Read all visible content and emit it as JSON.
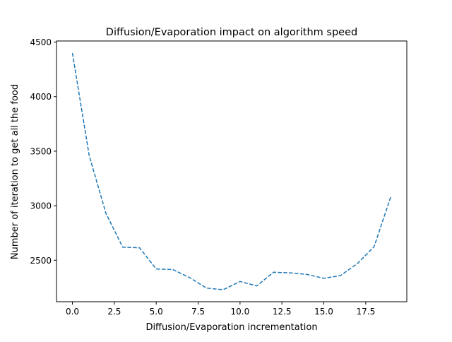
{
  "chart_data": {
    "type": "line",
    "title": "Diffusion/Evaporation impact on algorithm speed",
    "xlabel": "Diffusion/Evaporation incrementation",
    "ylabel": "Number of iteration to get all the food",
    "xlim": [
      -0.95,
      19.95
    ],
    "ylim": [
      2120,
      4510
    ],
    "x_ticks": [
      0.0,
      2.5,
      5.0,
      7.5,
      10.0,
      12.5,
      15.0,
      17.5
    ],
    "x_tick_labels": [
      "0.0",
      "2.5",
      "5.0",
      "7.5",
      "10.0",
      "12.5",
      "15.0",
      "17.5"
    ],
    "y_ticks": [
      2500,
      3000,
      3500,
      4000,
      4500
    ],
    "y_tick_labels": [
      "2500",
      "3000",
      "3500",
      "4000",
      "4500"
    ],
    "grid": false,
    "series": [
      {
        "color": "#1f77b4",
        "linestyle": "dashed",
        "x": [
          0,
          1,
          2,
          3,
          4,
          5,
          6,
          7,
          8,
          9,
          10,
          11,
          12,
          13,
          14,
          15,
          16,
          17,
          18,
          19
        ],
        "values": [
          4400,
          3460,
          2930,
          2620,
          2615,
          2420,
          2415,
          2340,
          2245,
          2230,
          2305,
          2265,
          2390,
          2385,
          2370,
          2335,
          2360,
          2470,
          2625,
          3085
        ]
      }
    ]
  }
}
